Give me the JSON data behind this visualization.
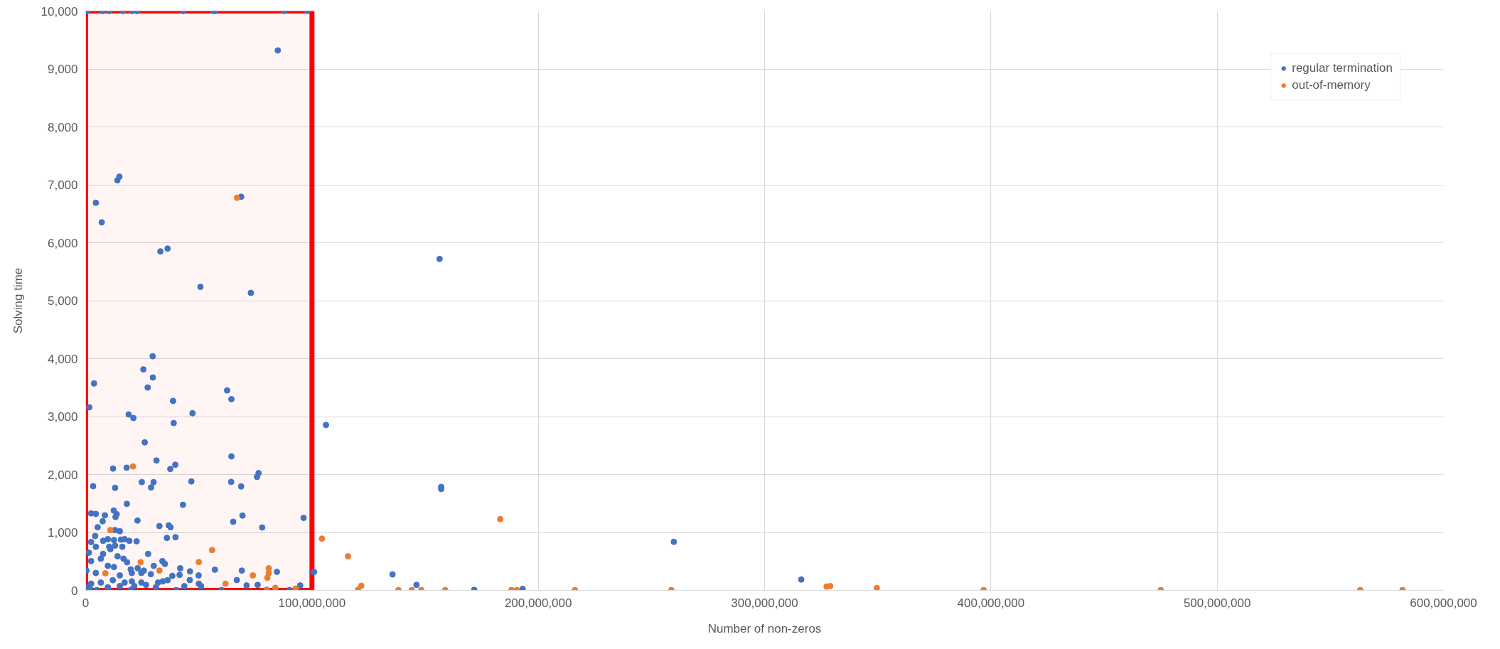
{
  "chart_data": {
    "type": "scatter",
    "xlabel": "Number of non-zeros",
    "ylabel": "Solving time",
    "xlim": [
      0,
      600000000
    ],
    "xticks": [
      0,
      {
        "value": 100000000,
        "label": "100,000,000"
      },
      {
        "value": 200000000,
        "label": "200,000,000"
      },
      {
        "value": 300000000,
        "label": "300,000,000"
      },
      {
        "value": 400000000,
        "label": "400,000,000"
      },
      {
        "value": 500000000,
        "label": "500,000,000"
      },
      {
        "value": 600000000,
        "label": "600,000,000"
      }
    ],
    "ylim": [
      0,
      10000
    ],
    "yticks": [
      0,
      {
        "value": 1000,
        "label": "1,000"
      },
      {
        "value": 2000,
        "label": "2,000"
      },
      {
        "value": 3000,
        "label": "3,000"
      },
      {
        "value": 4000,
        "label": "4,000"
      },
      {
        "value": 5000,
        "label": "5,000"
      },
      {
        "value": 6000,
        "label": "6,000"
      },
      {
        "value": 7000,
        "label": "7,000"
      },
      {
        "value": 8000,
        "label": "8,000"
      },
      {
        "value": 9000,
        "label": "9,000"
      },
      {
        "value": 10000,
        "label": "10,000"
      }
    ],
    "grid": true,
    "legend": "top right",
    "marker": "circle",
    "bands": [
      {
        "axis": "x",
        "from": 0,
        "to": 100000000,
        "color": "#ff0000"
      }
    ],
    "series": [
      {
        "name": "regular termination",
        "color": "#4472c4",
        "x": [
          900000,
          7500000,
          10500000,
          16400000,
          20400000,
          22700000,
          43200000,
          56300000,
          57400000,
          87700000,
          98000000,
          84900000,
          14900000,
          14000000,
          4500000,
          7100000,
          68700000,
          33000000,
          36200000,
          50700000,
          73000000,
          29600000,
          25500000,
          3700000,
          29700000,
          27400000,
          62500000,
          64400000,
          1600000,
          38600000,
          47200000,
          19000000,
          21100000,
          38900000,
          106200000,
          26100000,
          31300000,
          64400000,
          12100000,
          18100000,
          37400000,
          39600000,
          76400000,
          75700000,
          3300000,
          13000000,
          24800000,
          30000000,
          28900000,
          46700000,
          64300000,
          68700000,
          18200000,
          43000000,
          69300000,
          65200000,
          78000000,
          96300000,
          22900000,
          32600000,
          36700000,
          37500000,
          35900000,
          39700000,
          27600000,
          57100000,
          69000000,
          84500000,
          100900000,
          66800000,
          76000000,
          94800000,
          71100000,
          46100000,
          49900000,
          46000000,
          41800000,
          41500000,
          38300000,
          30100000,
          33900000,
          35000000,
          50000000,
          51000000,
          43600000,
          2400000,
          4500000,
          8500000,
          7500000,
          5300000,
          12400000,
          13700000,
          13200000,
          13000000,
          15100000,
          4200000,
          7700000,
          9800000,
          12500000,
          15600000,
          17200000,
          19300000,
          22500000,
          2400000,
          4500000,
          10400000,
          13000000,
          16200000,
          7700000,
          10900000,
          14100000,
          16700000,
          18300000,
          6700000,
          1400000,
          2400000,
          9800000,
          12500000,
          19900000,
          23000000,
          25700000,
          20400000,
          28800000,
          24600000,
          300000,
          4500000,
          15100000,
          12000000,
          17200000,
          20400000,
          24600000,
          26700000,
          32000000,
          34100000,
          36200000,
          31000000,
          6700000,
          2400000,
          300000,
          9800000,
          15100000,
          21500000,
          2000000,
          5000000,
          10000000,
          20000000,
          40000000,
          60000000,
          80000000,
          90000000,
          156400000,
          157100000,
          157100000,
          259900000,
          135600000,
          100600000,
          146200000,
          171700000,
          193100000,
          316200000
        ],
        "values": [
          10000,
          10000,
          10000,
          10000,
          10000,
          10000,
          10000,
          10000,
          10000,
          10000,
          10000,
          9320,
          7140,
          7078,
          6690,
          6353,
          6794,
          5851,
          5900,
          5238,
          5135,
          4041,
          3814,
          3572,
          3674,
          3501,
          3452,
          3300,
          3159,
          3270,
          3057,
          3036,
          2974,
          2888,
          2855,
          2554,
          2242,
          2312,
          2102,
          2118,
          2094,
          2168,
          2024,
          1958,
          1798,
          1769,
          1868,
          1868,
          1777,
          1880,
          1872,
          1794,
          1493,
          1477,
          1291,
          1184,
          1085,
          1251,
          1205,
          1110,
          1122,
          1090,
          905,
          917,
          629,
          357,
          341,
          320,
          320,
          177,
          94,
          85,
          85,
          328,
          258,
          177,
          381,
          267,
          250,
          423,
          505,
          456,
          115,
          73,
          73,
          1329,
          1320,
          1296,
          1193,
          1090,
          1378,
          1316,
          1267,
          1041,
          1020,
          938,
          855,
          884,
          868,
          876,
          884,
          855,
          847,
          835,
          753,
          753,
          773,
          753,
          629,
          711,
          588,
          547,
          485,
          547,
          650,
          506,
          423,
          403,
          362,
          382,
          341,
          300,
          279,
          300,
          341,
          300,
          259,
          176,
          135,
          156,
          135,
          94,
          135,
          156,
          176,
          53,
          135,
          115,
          53,
          53,
          74,
          74,
          20,
          5,
          15,
          10,
          5,
          5,
          10,
          5,
          5721,
          1785,
          1750,
          838,
          275,
          316,
          94,
          8,
          25,
          188
        ]
      },
      {
        "name": "out-of-memory",
        "color": "#ed7d31",
        "x": [
          66900000,
          20900000,
          104400000,
          55900000,
          10900000,
          24300000,
          50000000,
          32600000,
          8700000,
          73900000,
          80900000,
          80900000,
          80300000,
          61800000,
          83800000,
          80100000,
          92800000,
          183200000,
          115900000,
          121800000,
          120400000,
          138200000,
          144100000,
          148300000,
          158900000,
          188100000,
          190500000,
          216200000,
          258800000,
          327400000,
          329000000,
          349600000,
          396800000,
          475100000,
          563200000,
          581900000
        ],
        "values": [
          6777,
          2139,
          893,
          695,
          1041,
          485,
          489,
          341,
          295,
          258,
          381,
          300,
          217,
          115,
          44,
          4,
          32,
          1230,
          588,
          79,
          11,
          5,
          5,
          5,
          5,
          5,
          5,
          5,
          5,
          65,
          74,
          40,
          5,
          5,
          5,
          5
        ]
      }
    ]
  }
}
